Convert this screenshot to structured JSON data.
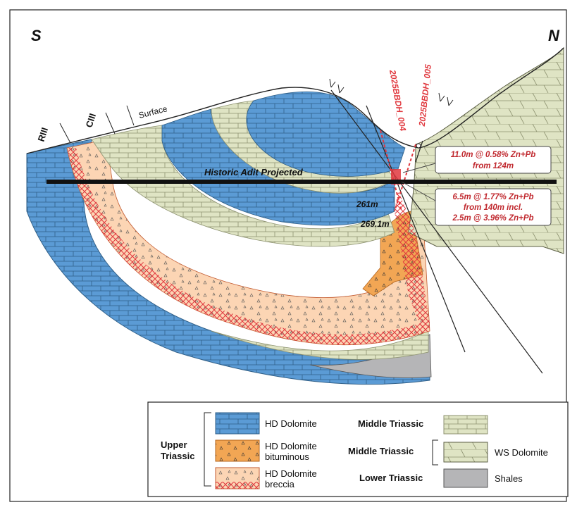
{
  "orientation": {
    "south": "S",
    "north": "N"
  },
  "units_labels": {
    "r3": "RIII",
    "c3": "CIII",
    "surface": "Surface"
  },
  "adit_label": "Historic Adit Projected",
  "drillholes": [
    {
      "name": "2025BBDH_004"
    },
    {
      "name": "2025BBDH_005"
    }
  ],
  "depth_labels": [
    "261m",
    "269.1m"
  ],
  "callouts": [
    {
      "line1": "11.0m @ 0.58% Zn+Pb",
      "line2": "from 124m"
    },
    {
      "line1": "6.5m @ 1.77% Zn+Pb",
      "line2": "from 140m incl.",
      "line3": "2.5m @ 3.96% Zn+Pb"
    }
  ],
  "legend": {
    "upper_triassic": "Upper Triassic",
    "hd_dolomite": "HD Dolomite",
    "hd_dolomite_bit_1": "HD Dolomite",
    "hd_dolomite_bit_2": "bituminous",
    "hd_dolomite_brec_1": "HD Dolomite",
    "hd_dolomite_brec_2": "breccia",
    "middle_triassic_1": "Middle Triassic",
    "middle_triassic_2": "Middle Triassic",
    "ws_dolomite": "WS Dolomite",
    "lower_triassic": "Lower Triassic",
    "shales": "Shales"
  },
  "colors": {
    "hd_dolomite": "#5b9bd5",
    "bituminous": "#f2a654",
    "breccia": "#fcd5b4",
    "breccia_hatch": "#e0383e",
    "middle_triassic": "#dfe4c4",
    "shales": "#b5b5b7",
    "callout_text": "#c0282e",
    "drill_label": "#e0383e"
  }
}
